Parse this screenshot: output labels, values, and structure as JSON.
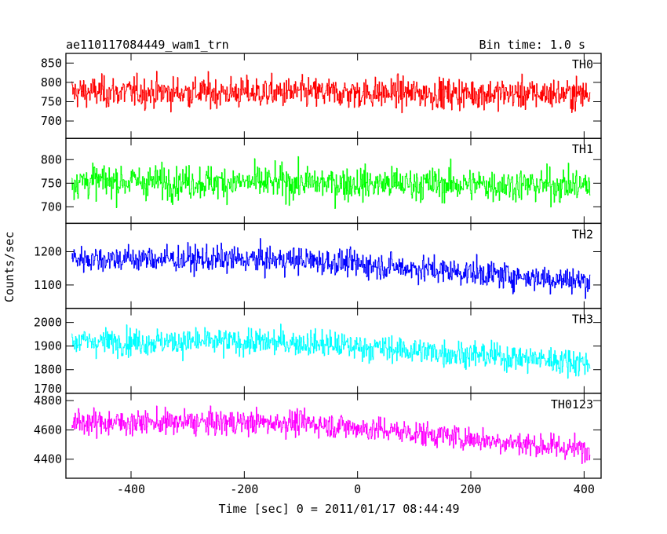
{
  "header": {
    "title": "ae110117084449_wam1_trn",
    "bin_time": "Bin time: 1.0 s"
  },
  "axes": {
    "ylabel": "Counts/sec",
    "xlabel": "Time [sec] 0 = 2011/01/17 08:44:49",
    "xlim": [
      -515,
      430
    ],
    "xticks": [
      -400,
      -200,
      0,
      200,
      400
    ]
  },
  "chart_data": [
    {
      "type": "line",
      "name": "TH0",
      "color": "#ff0000",
      "ylim": [
        655,
        875
      ],
      "yticks": [
        700,
        750,
        800,
        850
      ],
      "x_range": [
        -505,
        410
      ],
      "trend": {
        "x": [
          -505,
          410
        ],
        "y": [
          775,
          770
        ]
      },
      "noise_sd": 28,
      "yclip": [
        665,
        865
      ]
    },
    {
      "type": "line",
      "name": "TH1",
      "color": "#00ff00",
      "ylim": [
        665,
        845
      ],
      "yticks": [
        700,
        750,
        800
      ],
      "x_range": [
        -505,
        410
      ],
      "trend": {
        "x": [
          -505,
          410
        ],
        "y": [
          755,
          745
        ]
      },
      "noise_sd": 25,
      "yclip": [
        670,
        840
      ]
    },
    {
      "type": "line",
      "name": "TH2",
      "color": "#0000ff",
      "ylim": [
        1030,
        1285
      ],
      "yticks": [
        1100,
        1200
      ],
      "x_range": [
        -505,
        410
      ],
      "trend": {
        "x": [
          -505,
          -100,
          100,
          410
        ],
        "y": [
          1180,
          1175,
          1150,
          1110
        ]
      },
      "noise_sd": 28,
      "yclip": [
        1040,
        1280
      ]
    },
    {
      "type": "line",
      "name": "TH3",
      "color": "#00ffff",
      "ylim": [
        1700,
        2060
      ],
      "yticks": [
        1700,
        1800,
        1900,
        2000
      ],
      "x_range": [
        -505,
        410
      ],
      "trend": {
        "x": [
          -505,
          -100,
          100,
          410
        ],
        "y": [
          1920,
          1915,
          1880,
          1830
        ]
      },
      "noise_sd": 40,
      "yclip": [
        1705,
        2055
      ]
    },
    {
      "type": "line",
      "name": "TH0123",
      "color": "#ff00ff",
      "ylim": [
        4270,
        4850
      ],
      "yticks": [
        4400,
        4600,
        4800
      ],
      "x_range": [
        -505,
        410
      ],
      "trend": {
        "x": [
          -505,
          -100,
          100,
          410
        ],
        "y": [
          4650,
          4650,
          4580,
          4460
        ]
      },
      "noise_sd": 60,
      "yclip": [
        4300,
        4840
      ]
    }
  ]
}
